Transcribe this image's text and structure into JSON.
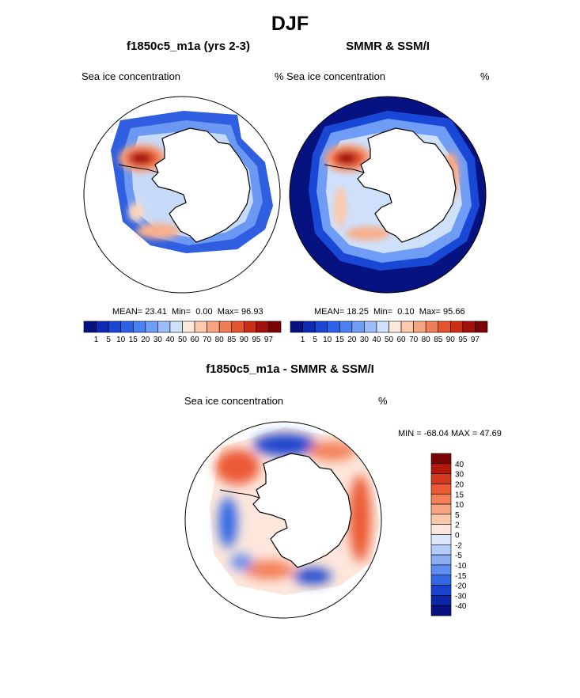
{
  "figure": {
    "title": "DJF",
    "panels": [
      {
        "title": "f1850c5_m1a (yrs 2-3)",
        "variable": "Sea ice concentration",
        "units": "%",
        "stats": {
          "mean_label": "MEAN=",
          "mean": "23.41",
          "min_label": "Min=",
          "min": "0.00",
          "max_label": "Max=",
          "max": "96.93"
        }
      },
      {
        "title": "SMMR & SSM/I",
        "variable": "Sea ice concentration",
        "units": "%",
        "stats": {
          "mean_label": "MEAN=",
          "mean": "18.25",
          "min_label": "Min=",
          "min": "0.10",
          "max_label": "Max=",
          "max": "95.66"
        }
      }
    ],
    "difference": {
      "title": "f1850c5_m1a - SMMR & SSM/I",
      "variable": "Sea ice concentration",
      "units": "%",
      "minmax": "MIN = -68.04 MAX =  47.69"
    }
  },
  "chart_data": {
    "type": "heatmap",
    "projection": "south-polar-stereographic",
    "concentration_colorbar": {
      "levels": [
        "1",
        "5",
        "10",
        "15",
        "20",
        "30",
        "40",
        "50",
        "60",
        "70",
        "80",
        "85",
        "90",
        "95",
        "97"
      ],
      "colors": [
        "#06127f",
        "#0b2bb4",
        "#1a48d6",
        "#2d62e8",
        "#4a80f2",
        "#6f9df6",
        "#9cbdf8",
        "#cfe0fb",
        "#fde9dc",
        "#fcc9ad",
        "#f7a580",
        "#f07d56",
        "#e4542f",
        "#cc2f15",
        "#a3110a",
        "#7b0404"
      ]
    },
    "difference_colorbar": {
      "levels": [
        "40",
        "30",
        "20",
        "15",
        "10",
        "5",
        "2",
        "0",
        "-2",
        "-5",
        "-10",
        "-15",
        "-20",
        "-30",
        "-40"
      ],
      "colors": [
        "#7b0404",
        "#b21a0c",
        "#d5391d",
        "#ec5a35",
        "#f47f58",
        "#f7a581",
        "#fbc8aa",
        "#fde7dc",
        "#dde8fb",
        "#b5cbf8",
        "#8aadf4",
        "#5e8cef",
        "#3467e3",
        "#1b44ce",
        "#0b27a6",
        "#06127f"
      ]
    }
  }
}
